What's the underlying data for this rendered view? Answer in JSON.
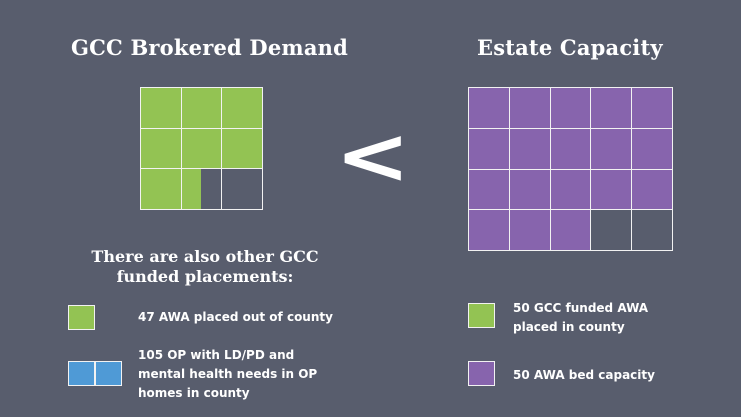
{
  "left": {
    "title": "GCC Brokered Demand",
    "grid": {
      "rows": 3,
      "cols": 3,
      "filled_units": 7.5
    },
    "color": "#93c353"
  },
  "comparison": {
    "symbol": "<"
  },
  "right": {
    "title": "Estate Capacity",
    "grid": {
      "rows": 4,
      "cols": 5,
      "filled_units": 18
    },
    "color": "#8764ad"
  },
  "other": {
    "heading": "There are also other GCC funded placements:",
    "items": [
      {
        "text": "47 AWA placed out of county",
        "color": "#93c353",
        "squares": 1
      },
      {
        "text": "105 OP with LD/PD and mental health needs in OP homes in county",
        "color": "#4f9ad6",
        "squares": 2
      }
    ]
  },
  "legend": {
    "items": [
      {
        "text": "50 GCC funded AWA placed in county",
        "color": "#93c353"
      },
      {
        "text": "50 AWA bed capacity",
        "color": "#8764ad"
      }
    ]
  }
}
